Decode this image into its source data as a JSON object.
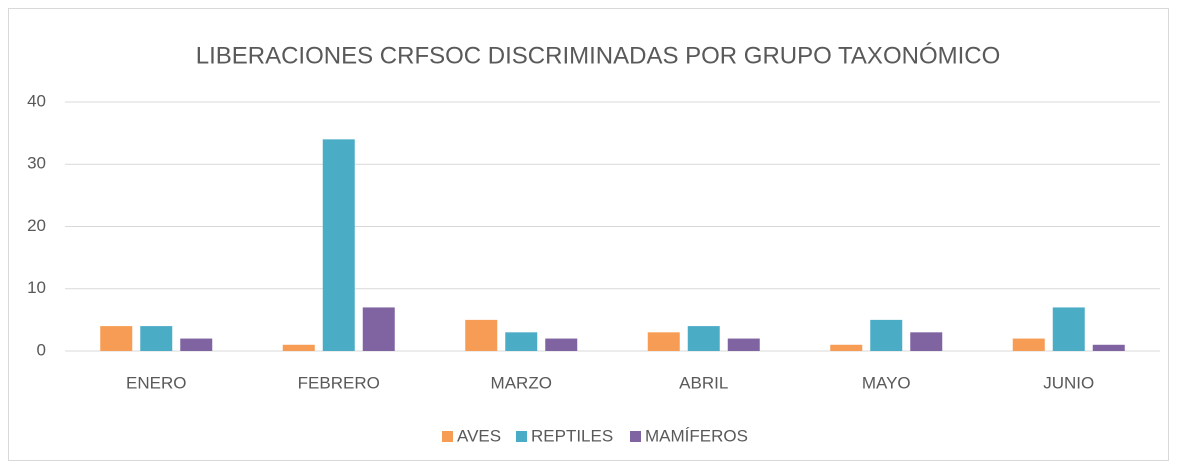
{
  "chart_data": {
    "type": "bar",
    "title": "LIBERACIONES CRFSOC DISCRIMINADAS POR GRUPO TAXONÓMICO",
    "categories": [
      "ENERO",
      "FEBRERO",
      "MARZO",
      "ABRIL",
      "MAYO",
      "JUNIO"
    ],
    "series": [
      {
        "name": "AVES",
        "color": "#f79c54",
        "values": [
          4,
          1,
          5,
          3,
          1,
          2
        ]
      },
      {
        "name": "REPTILES",
        "color": "#4bacc6",
        "values": [
          4,
          34,
          3,
          4,
          5,
          7
        ]
      },
      {
        "name": "MAMÍFEROS",
        "color": "#8064a2",
        "values": [
          2,
          7,
          2,
          2,
          3,
          1
        ]
      }
    ],
    "ylim": [
      0,
      40
    ],
    "yticks": [
      0,
      10,
      20,
      30,
      40
    ],
    "grid": true,
    "legend": "bottom"
  }
}
